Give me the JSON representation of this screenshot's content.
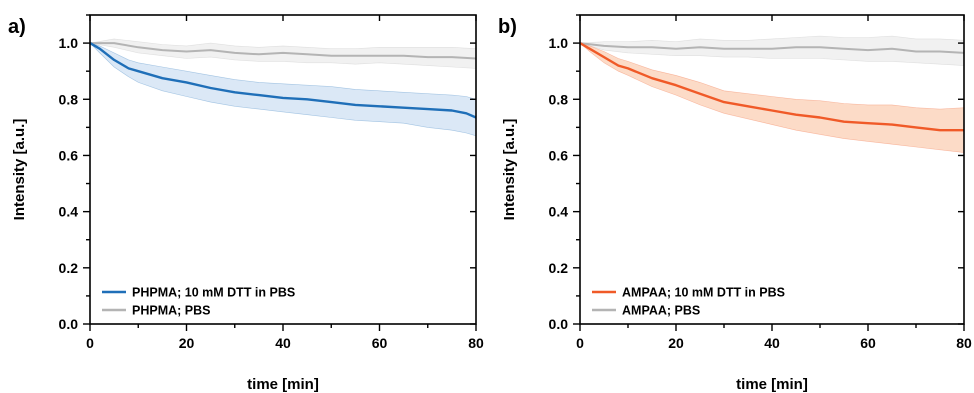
{
  "chart_data": [
    {
      "type": "line",
      "panel_label": "a)",
      "xlabel": "time [min]",
      "ylabel": "Intensity [a.u.]",
      "xlim": [
        0,
        80
      ],
      "ylim": [
        0,
        1.1
      ],
      "xticks": [
        "0",
        "20",
        "40",
        "60",
        "80"
      ],
      "yticks": [
        "0.0",
        "0.2",
        "0.4",
        "0.6",
        "0.8",
        "1.0"
      ],
      "grid": false,
      "legend_position": "bottom-left",
      "series": [
        {
          "name": "PHPMA; 10 mM DTT in PBS",
          "color": "#1f6fb8",
          "band_color": "#cfe0f3",
          "x": [
            0,
            2,
            5,
            8,
            10,
            15,
            20,
            25,
            30,
            35,
            40,
            45,
            50,
            55,
            60,
            65,
            70,
            75,
            78,
            80
          ],
          "y": [
            1.0,
            0.98,
            0.94,
            0.91,
            0.9,
            0.875,
            0.86,
            0.84,
            0.825,
            0.815,
            0.805,
            0.8,
            0.79,
            0.78,
            0.775,
            0.77,
            0.765,
            0.76,
            0.75,
            0.735
          ],
          "y_lower": [
            1.0,
            0.965,
            0.915,
            0.88,
            0.86,
            0.83,
            0.81,
            0.79,
            0.775,
            0.765,
            0.755,
            0.745,
            0.735,
            0.725,
            0.72,
            0.715,
            0.7,
            0.69,
            0.68,
            0.67
          ],
          "y_upper": [
            1.0,
            0.99,
            0.965,
            0.94,
            0.93,
            0.915,
            0.9,
            0.885,
            0.87,
            0.86,
            0.855,
            0.85,
            0.845,
            0.835,
            0.83,
            0.825,
            0.82,
            0.815,
            0.81,
            0.8
          ]
        },
        {
          "name": "PHPMA; PBS",
          "color": "#b4b4b4",
          "band_color": "#ececec",
          "x": [
            0,
            5,
            10,
            15,
            20,
            25,
            30,
            35,
            40,
            45,
            50,
            55,
            60,
            65,
            70,
            75,
            80
          ],
          "y": [
            1.0,
            1.0,
            0.985,
            0.975,
            0.97,
            0.975,
            0.965,
            0.96,
            0.965,
            0.96,
            0.955,
            0.955,
            0.955,
            0.955,
            0.95,
            0.95,
            0.945
          ],
          "y_lower": [
            1.0,
            0.985,
            0.965,
            0.955,
            0.945,
            0.95,
            0.94,
            0.935,
            0.935,
            0.93,
            0.93,
            0.925,
            0.93,
            0.925,
            0.92,
            0.915,
            0.91
          ],
          "y_upper": [
            1.0,
            1.015,
            1.005,
            0.995,
            0.99,
            1.0,
            0.99,
            0.985,
            0.99,
            0.985,
            0.98,
            0.98,
            0.985,
            0.985,
            0.985,
            0.985,
            0.98
          ]
        }
      ]
    },
    {
      "type": "line",
      "panel_label": "b)",
      "xlabel": "time [min]",
      "ylabel": "Intensity [a.u.]",
      "xlim": [
        0,
        80
      ],
      "ylim": [
        0,
        1.1
      ],
      "xticks": [
        "0",
        "20",
        "40",
        "60",
        "80"
      ],
      "yticks": [
        "0.0",
        "0.2",
        "0.4",
        "0.6",
        "0.8",
        "1.0"
      ],
      "grid": false,
      "legend_position": "bottom-left",
      "series": [
        {
          "name": "AMPAA; 10 mM DTT in PBS",
          "color": "#f05a28",
          "band_color": "#fbcfb4",
          "x": [
            0,
            2,
            5,
            8,
            10,
            15,
            20,
            25,
            30,
            35,
            40,
            45,
            50,
            55,
            60,
            65,
            70,
            75,
            80
          ],
          "y": [
            1.0,
            0.98,
            0.95,
            0.92,
            0.91,
            0.875,
            0.85,
            0.82,
            0.79,
            0.775,
            0.76,
            0.745,
            0.735,
            0.72,
            0.715,
            0.71,
            0.7,
            0.69,
            0.69
          ],
          "y_lower": [
            1.0,
            0.97,
            0.93,
            0.9,
            0.885,
            0.845,
            0.815,
            0.78,
            0.75,
            0.73,
            0.71,
            0.69,
            0.675,
            0.66,
            0.65,
            0.64,
            0.63,
            0.62,
            0.61
          ],
          "y_upper": [
            1.0,
            0.99,
            0.97,
            0.945,
            0.935,
            0.905,
            0.885,
            0.86,
            0.83,
            0.82,
            0.81,
            0.8,
            0.795,
            0.785,
            0.78,
            0.78,
            0.77,
            0.765,
            0.77
          ]
        },
        {
          "name": "AMPAA; PBS",
          "color": "#b4b4b4",
          "band_color": "#ececec",
          "x": [
            0,
            5,
            10,
            15,
            20,
            25,
            30,
            35,
            40,
            45,
            50,
            55,
            60,
            65,
            70,
            75,
            80
          ],
          "y": [
            1.0,
            0.99,
            0.985,
            0.985,
            0.98,
            0.985,
            0.98,
            0.98,
            0.98,
            0.985,
            0.985,
            0.98,
            0.975,
            0.98,
            0.97,
            0.97,
            0.965
          ],
          "y_lower": [
            1.0,
            0.975,
            0.965,
            0.96,
            0.955,
            0.955,
            0.95,
            0.95,
            0.945,
            0.945,
            0.945,
            0.94,
            0.935,
            0.935,
            0.93,
            0.925,
            0.92
          ],
          "y_upper": [
            1.0,
            1.005,
            1.005,
            1.01,
            1.005,
            1.015,
            1.01,
            1.01,
            1.015,
            1.02,
            1.025,
            1.02,
            1.02,
            1.025,
            1.015,
            1.015,
            1.01
          ]
        }
      ]
    }
  ]
}
